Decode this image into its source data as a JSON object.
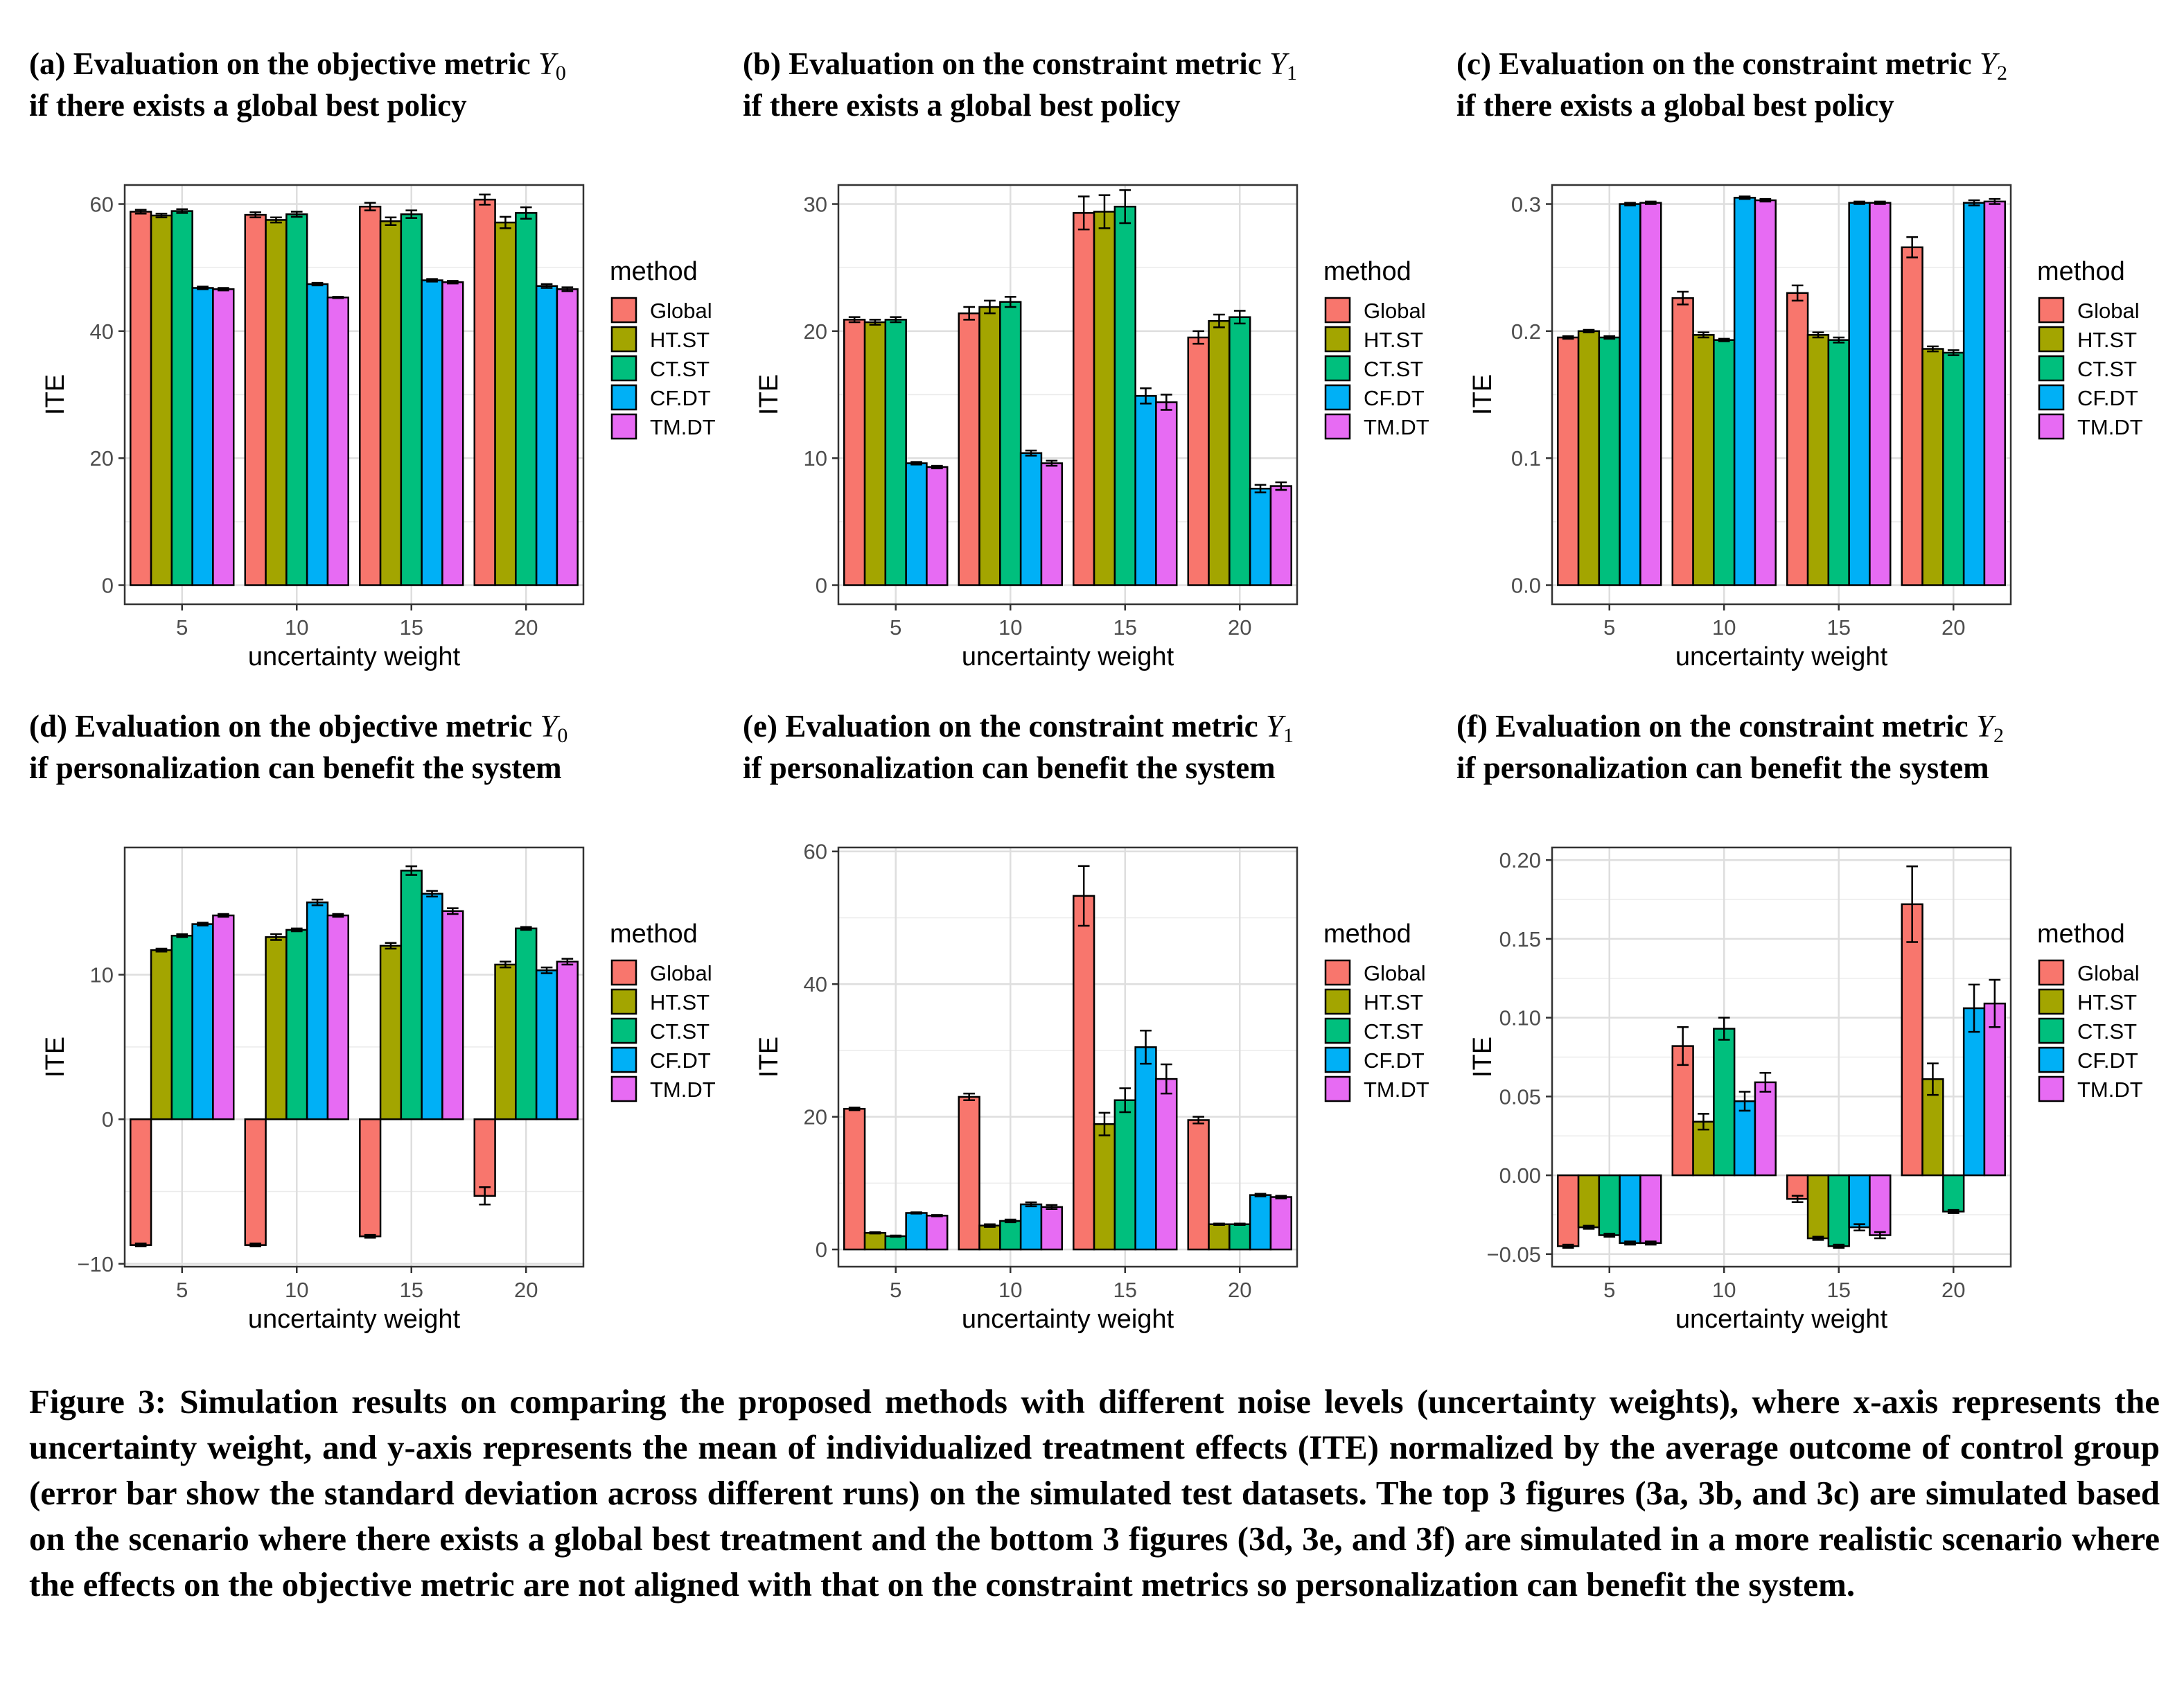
{
  "caption": "Figure 3: Simulation results on comparing the proposed methods with different noise levels (uncertainty weights), where x-axis represents the uncertainty weight, and y-axis represents the mean of individualized treatment effects (ITE) normalized by the average outcome of control group (error bar show the standard deviation across different runs) on the simulated test datasets. The top 3 figures (3a, 3b, and 3c) are simulated based on the scenario where there exists a global best treatment and the bottom 3 figures (3d, 3e, and 3f) are simulated in a more realistic scenario where the effects on the objective metric are not aligned with that on the constraint metrics so personalization can benefit the system.",
  "colors": {
    "Global": "#F8766D",
    "HT.ST": "#A3A500",
    "CT.ST": "#00BF7D",
    "CF.DT": "#00B0F6",
    "TM.DT": "#E76BF3"
  },
  "chart_data": [
    {
      "id": "a",
      "type": "bar",
      "title_prefix": "(a) Evaluation on the objective metric ",
      "title_var": "Y",
      "title_sub": "0",
      "title_line2": "if there exists a global best policy",
      "xlabel": "uncertainty weight",
      "ylabel": "ITE",
      "categories": [
        "5",
        "10",
        "15",
        "20"
      ],
      "ylim": [
        -3,
        63
      ],
      "yticks": [
        0,
        20,
        40,
        60
      ],
      "ytick_labels": [
        "0",
        "20",
        "40",
        "60"
      ],
      "legend_title": "method",
      "legend_position": "right",
      "grid": true,
      "series": [
        {
          "name": "Global",
          "values": [
            58.8,
            58.3,
            59.6,
            60.7
          ],
          "errors": [
            0.3,
            0.4,
            0.6,
            0.8
          ]
        },
        {
          "name": "HT.ST",
          "values": [
            58.2,
            57.5,
            57.3,
            57.1
          ],
          "errors": [
            0.3,
            0.4,
            0.6,
            0.9
          ]
        },
        {
          "name": "CT.ST",
          "values": [
            58.9,
            58.4,
            58.4,
            58.6
          ],
          "errors": [
            0.3,
            0.4,
            0.6,
            0.9
          ]
        },
        {
          "name": "CF.DT",
          "values": [
            46.8,
            47.4,
            48.0,
            47.1
          ],
          "errors": [
            0.2,
            0.2,
            0.2,
            0.3
          ]
        },
        {
          "name": "TM.DT",
          "values": [
            46.6,
            45.3,
            47.7,
            46.6
          ],
          "errors": [
            0.2,
            0.1,
            0.2,
            0.3
          ]
        }
      ]
    },
    {
      "id": "b",
      "type": "bar",
      "title_prefix": "(b) Evaluation on the constraint metric ",
      "title_var": "Y",
      "title_sub": "1",
      "title_line2": "if there exists a global best policy",
      "xlabel": "uncertainty weight",
      "ylabel": "ITE",
      "categories": [
        "5",
        "10",
        "15",
        "20"
      ],
      "ylim": [
        -1.5,
        31.5
      ],
      "yticks": [
        0,
        10,
        20,
        30
      ],
      "ytick_labels": [
        "0",
        "10",
        "20",
        "30"
      ],
      "legend_title": "method",
      "legend_position": "right",
      "grid": true,
      "series": [
        {
          "name": "Global",
          "values": [
            20.9,
            21.4,
            29.3,
            19.5
          ],
          "errors": [
            0.2,
            0.5,
            1.3,
            0.5
          ]
        },
        {
          "name": "HT.ST",
          "values": [
            20.7,
            21.9,
            29.4,
            20.8
          ],
          "errors": [
            0.2,
            0.5,
            1.3,
            0.5
          ]
        },
        {
          "name": "CT.ST",
          "values": [
            20.9,
            22.3,
            29.8,
            21.1
          ],
          "errors": [
            0.2,
            0.4,
            1.3,
            0.5
          ]
        },
        {
          "name": "CF.DT",
          "values": [
            9.6,
            10.4,
            14.9,
            7.6
          ],
          "errors": [
            0.1,
            0.2,
            0.6,
            0.3
          ]
        },
        {
          "name": "TM.DT",
          "values": [
            9.3,
            9.6,
            14.4,
            7.8
          ],
          "errors": [
            0.1,
            0.2,
            0.6,
            0.3
          ]
        }
      ]
    },
    {
      "id": "c",
      "type": "bar",
      "title_prefix": "(c) Evaluation on the constraint metric ",
      "title_var": "Y",
      "title_sub": "2",
      "title_line2": "if there exists a global best policy",
      "xlabel": "uncertainty weight",
      "ylabel": "ITE",
      "categories": [
        "5",
        "10",
        "15",
        "20"
      ],
      "ylim": [
        -0.015,
        0.315
      ],
      "yticks": [
        0,
        0.1,
        0.2,
        0.3
      ],
      "ytick_labels": [
        "0.0",
        "0.1",
        "0.2",
        "0.3"
      ],
      "legend_title": "method",
      "legend_position": "right",
      "grid": true,
      "series": [
        {
          "name": "Global",
          "values": [
            0.195,
            0.226,
            0.23,
            0.266
          ],
          "errors": [
            0.001,
            0.005,
            0.006,
            0.008
          ]
        },
        {
          "name": "HT.ST",
          "values": [
            0.2,
            0.197,
            0.197,
            0.186
          ],
          "errors": [
            0.001,
            0.002,
            0.002,
            0.002
          ]
        },
        {
          "name": "CT.ST",
          "values": [
            0.195,
            0.193,
            0.193,
            0.183
          ],
          "errors": [
            0.001,
            0.001,
            0.002,
            0.002
          ]
        },
        {
          "name": "CF.DT",
          "values": [
            0.3,
            0.305,
            0.301,
            0.301
          ],
          "errors": [
            0.001,
            0.001,
            0.001,
            0.002
          ]
        },
        {
          "name": "TM.DT",
          "values": [
            0.301,
            0.303,
            0.301,
            0.302
          ],
          "errors": [
            0.001,
            0.001,
            0.001,
            0.002
          ]
        }
      ]
    },
    {
      "id": "d",
      "type": "bar",
      "title_prefix": "(d) Evaluation on the objective metric ",
      "title_var": "Y",
      "title_sub": "0",
      "title_line2": "if personalization can benefit the system",
      "xlabel": "uncertainty weight",
      "ylabel": "ITE",
      "categories": [
        "5",
        "10",
        "15",
        "20"
      ],
      "ylim": [
        -10.2,
        18.8
      ],
      "yticks": [
        -10,
        0,
        10
      ],
      "ytick_labels": [
        "−10",
        "0",
        "10"
      ],
      "legend_title": "method",
      "legend_position": "right",
      "grid": true,
      "series": [
        {
          "name": "Global",
          "values": [
            -8.7,
            -8.7,
            -8.1,
            -5.3
          ],
          "errors": [
            0.1,
            0.1,
            0.1,
            0.6
          ]
        },
        {
          "name": "HT.ST",
          "values": [
            11.7,
            12.6,
            12.0,
            10.7
          ],
          "errors": [
            0.1,
            0.2,
            0.2,
            0.2
          ]
        },
        {
          "name": "CT.ST",
          "values": [
            12.7,
            13.1,
            17.2,
            13.2
          ],
          "errors": [
            0.1,
            0.1,
            0.3,
            0.1
          ]
        },
        {
          "name": "CF.DT",
          "values": [
            13.5,
            15.0,
            15.6,
            10.3
          ],
          "errors": [
            0.1,
            0.2,
            0.2,
            0.2
          ]
        },
        {
          "name": "TM.DT",
          "values": [
            14.1,
            14.1,
            14.4,
            10.9
          ],
          "errors": [
            0.1,
            0.1,
            0.2,
            0.2
          ]
        }
      ]
    },
    {
      "id": "e",
      "type": "bar",
      "title_prefix": "(e) Evaluation on the constraint metric ",
      "title_var": "Y",
      "title_sub": "1",
      "title_line2": "if personalization can benefit the system",
      "xlabel": "uncertainty weight",
      "ylabel": "ITE",
      "categories": [
        "5",
        "10",
        "15",
        "20"
      ],
      "ylim": [
        -2.6,
        60.6
      ],
      "yticks": [
        0,
        20,
        40,
        60
      ],
      "ytick_labels": [
        "0",
        "20",
        "40",
        "60"
      ],
      "legend_title": "method",
      "legend_position": "right",
      "grid": true,
      "series": [
        {
          "name": "Global",
          "values": [
            21.2,
            23.0,
            53.3,
            19.5
          ],
          "errors": [
            0.2,
            0.5,
            4.5,
            0.5
          ]
        },
        {
          "name": "HT.ST",
          "values": [
            2.5,
            3.6,
            18.9,
            3.8
          ],
          "errors": [
            0.1,
            0.2,
            1.7,
            0.1
          ]
        },
        {
          "name": "CT.ST",
          "values": [
            2.0,
            4.3,
            22.5,
            3.8
          ],
          "errors": [
            0.1,
            0.2,
            1.8,
            0.1
          ]
        },
        {
          "name": "CF.DT",
          "values": [
            5.5,
            6.8,
            30.5,
            8.2
          ],
          "errors": [
            0.1,
            0.3,
            2.5,
            0.2
          ]
        },
        {
          "name": "TM.DT",
          "values": [
            5.1,
            6.4,
            25.7,
            7.9
          ],
          "errors": [
            0.1,
            0.3,
            2.2,
            0.2
          ]
        }
      ]
    },
    {
      "id": "f",
      "type": "bar",
      "title_prefix": "(f) Evaluation on the constraint metric ",
      "title_var": "Y",
      "title_sub": "2",
      "title_line2": "if personalization can benefit the system",
      "xlabel": "uncertainty weight",
      "ylabel": "ITE",
      "categories": [
        "5",
        "10",
        "15",
        "20"
      ],
      "ylim": [
        -0.058,
        0.208
      ],
      "yticks": [
        -0.05,
        0,
        0.05,
        0.1,
        0.15,
        0.2
      ],
      "ytick_labels": [
        "−0.05",
        "0.00",
        "0.05",
        "0.10",
        "0.15",
        "0.20"
      ],
      "legend_title": "method",
      "legend_position": "right",
      "grid": true,
      "series": [
        {
          "name": "Global",
          "values": [
            -0.045,
            0.082,
            -0.015,
            0.172
          ],
          "errors": [
            0.001,
            0.012,
            0.002,
            0.024
          ]
        },
        {
          "name": "HT.ST",
          "values": [
            -0.033,
            0.034,
            -0.04,
            0.061
          ],
          "errors": [
            0.001,
            0.005,
            0.001,
            0.01
          ]
        },
        {
          "name": "CT.ST",
          "values": [
            -0.038,
            0.093,
            -0.045,
            -0.023
          ],
          "errors": [
            0.001,
            0.007,
            0.001,
            0.001
          ]
        },
        {
          "name": "CF.DT",
          "values": [
            -0.043,
            0.047,
            -0.033,
            0.106
          ],
          "errors": [
            0.001,
            0.006,
            0.002,
            0.015
          ]
        },
        {
          "name": "TM.DT",
          "values": [
            -0.043,
            0.059,
            -0.038,
            0.109
          ],
          "errors": [
            0.001,
            0.006,
            0.002,
            0.015
          ]
        }
      ]
    }
  ]
}
